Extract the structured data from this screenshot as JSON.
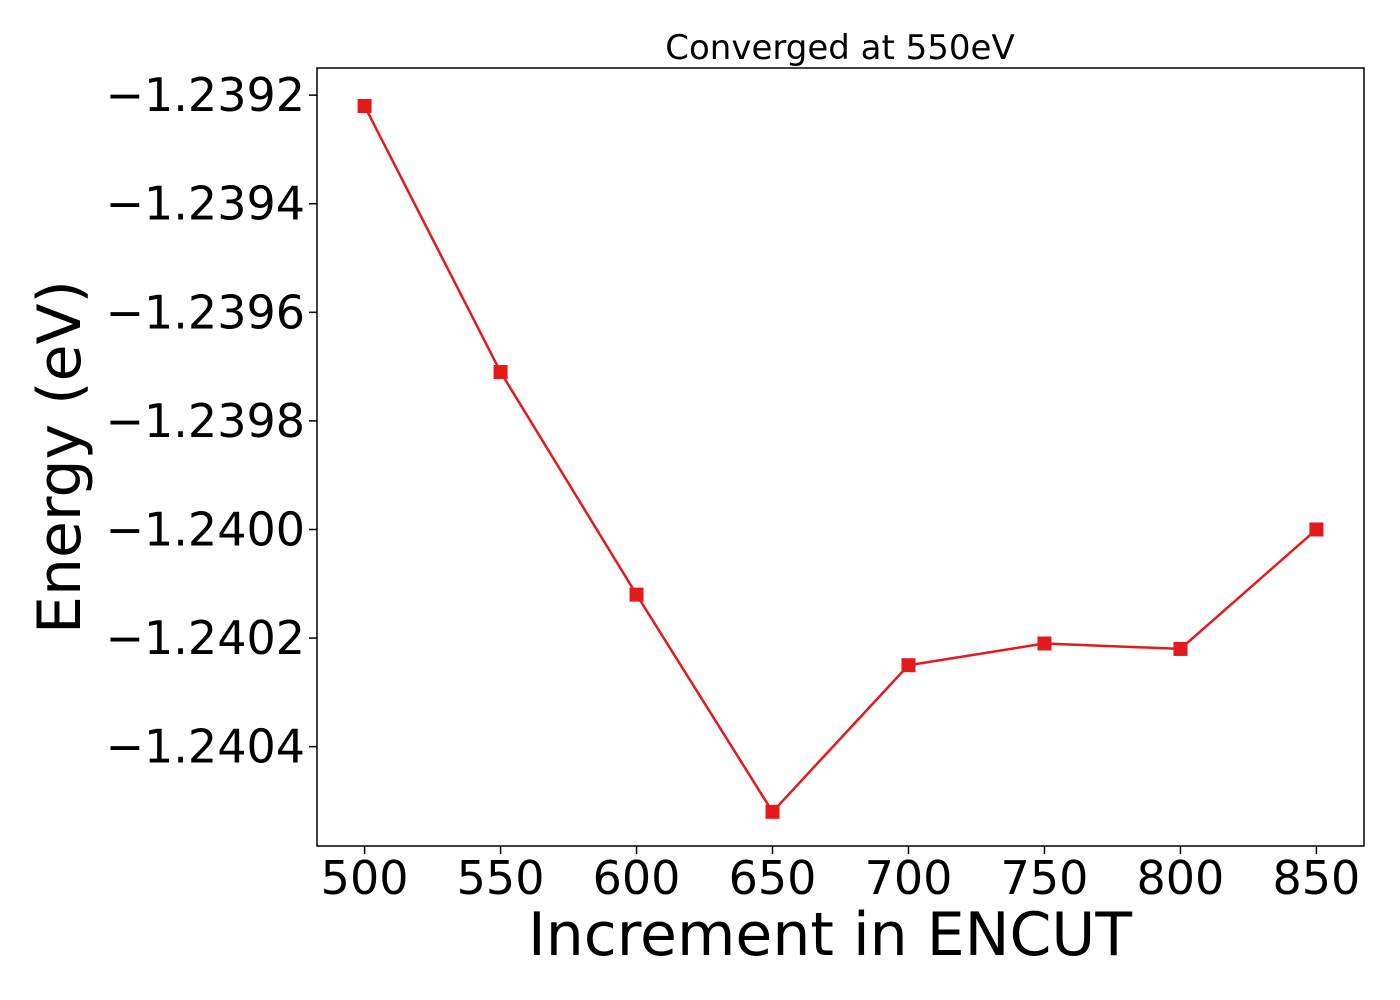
{
  "chart_data": {
    "type": "line",
    "title": "Converged at 550eV",
    "xlabel": "Increment in ENCUT",
    "ylabel": "Energy (eV)",
    "x": [
      500,
      550,
      600,
      650,
      700,
      750,
      800,
      850
    ],
    "series": [
      {
        "values": [
          -1.23922,
          -1.23971,
          -1.24012,
          -1.24052,
          -1.24025,
          -1.24021,
          -1.24022,
          -1.24
        ],
        "color": "#e31a1c",
        "marker": "square"
      }
    ],
    "xticks": [
      500,
      550,
      600,
      650,
      700,
      750,
      800,
      850
    ],
    "xtick_labels": [
      "500",
      "550",
      "600",
      "650",
      "700",
      "750",
      "800",
      "850"
    ],
    "yticks": [
      -1.2392,
      -1.2394,
      -1.2396,
      -1.2398,
      -1.24,
      -1.2402,
      -1.2404
    ],
    "ytick_labels": [
      "−1.2392",
      "−1.2394",
      "−1.2396",
      "−1.2398",
      "−1.2400",
      "−1.2402",
      "−1.2404"
    ],
    "xlim": [
      482.5,
      867.5
    ],
    "ylim": [
      -1.240583,
      -1.23915
    ],
    "grid": false,
    "legend": false
  }
}
